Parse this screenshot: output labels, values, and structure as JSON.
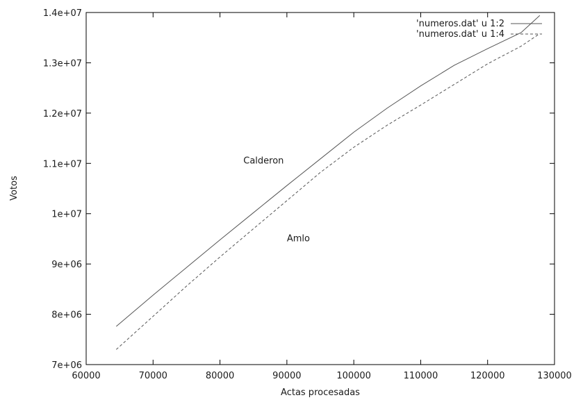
{
  "chart_data": {
    "type": "line",
    "title": "",
    "xlabel": "Actas procesadas",
    "ylabel": "Votos",
    "xlim": [
      60000,
      130000
    ],
    "ylim": [
      7000000,
      14000000
    ],
    "x_ticks": [
      60000,
      70000,
      80000,
      90000,
      100000,
      110000,
      120000,
      130000
    ],
    "x_tick_labels": [
      "60000",
      "70000",
      "80000",
      "90000",
      "100000",
      "110000",
      "120000",
      "130000"
    ],
    "y_ticks": [
      7000000,
      8000000,
      9000000,
      10000000,
      11000000,
      12000000,
      13000000,
      14000000
    ],
    "y_tick_labels": [
      "7e+06",
      "8e+06",
      "9e+06",
      "1e+07",
      "1.1e+07",
      "1.2e+07",
      "1.3e+07",
      "1.4e+07"
    ],
    "grid": false,
    "legend_position": "top-right",
    "series": [
      {
        "name": "'numeros.dat' u 1:2",
        "style": "solid",
        "color": "#555555",
        "x": [
          64500,
          70000,
          75000,
          80000,
          85000,
          90000,
          95000,
          100000,
          105000,
          110000,
          115000,
          120000,
          125000,
          127800
        ],
        "y": [
          7760000,
          8380000,
          8930000,
          9480000,
          10020000,
          10560000,
          11090000,
          11620000,
          12100000,
          12540000,
          12950000,
          13280000,
          13600000,
          13940000
        ]
      },
      {
        "name": "'numeros.dat' u 1:4",
        "style": "dashed",
        "color": "#555555",
        "x": [
          64500,
          70000,
          75000,
          80000,
          85000,
          90000,
          95000,
          100000,
          105000,
          110000,
          115000,
          120000,
          125000,
          127800
        ],
        "y": [
          7300000,
          7960000,
          8560000,
          9140000,
          9700000,
          10260000,
          10820000,
          11320000,
          11760000,
          12160000,
          12570000,
          12980000,
          13330000,
          13580000
        ]
      }
    ],
    "annotations": [
      {
        "text": "Calderon",
        "x": 83500,
        "y": 11000000
      },
      {
        "text": "Amlo",
        "x": 90000,
        "y": 9450000
      }
    ]
  }
}
